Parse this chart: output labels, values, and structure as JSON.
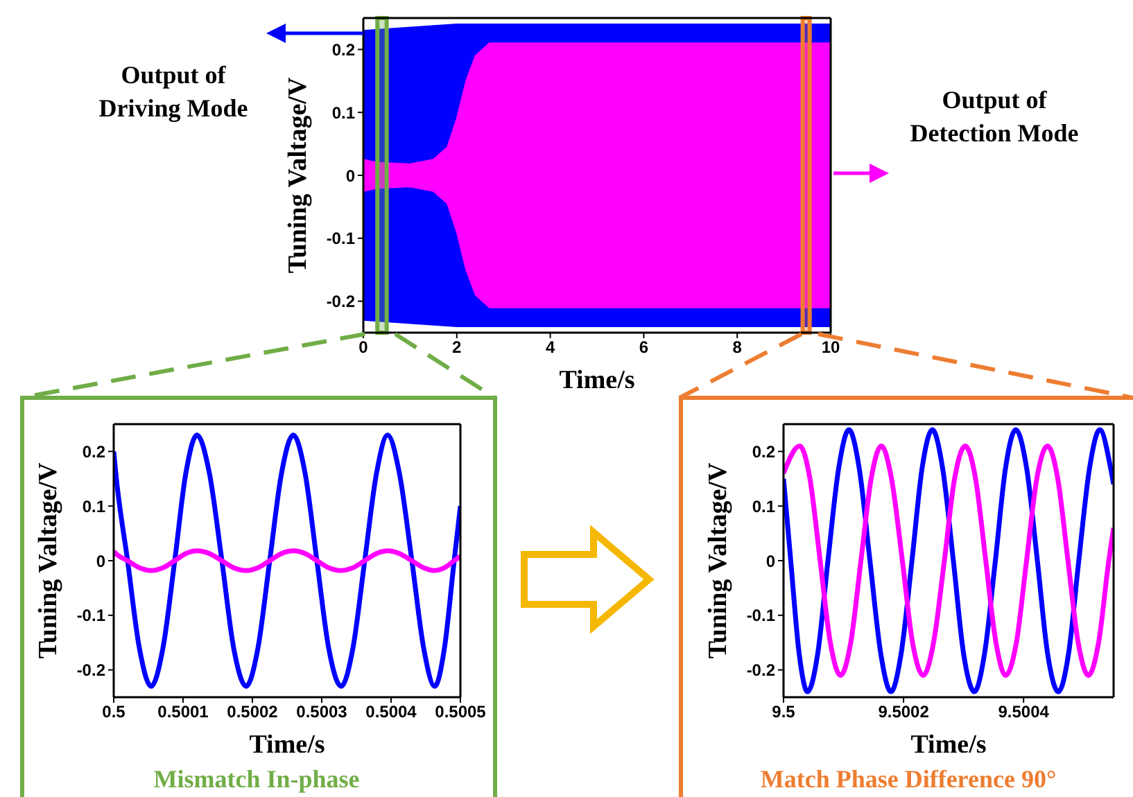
{
  "chart_data": [
    {
      "type": "area",
      "xlabel": "Time/s",
      "ylabel": "Tuning Valtage/V",
      "xlim": [
        0,
        10
      ],
      "xticks": [
        0,
        2,
        4,
        6,
        8,
        10
      ],
      "ylim": [
        -0.25,
        0.25
      ],
      "yticks": [
        -0.2,
        -0.1,
        0,
        0.1,
        0.2
      ],
      "series": [
        {
          "color": "#0000ff",
          "x": [
            0,
            2,
            10
          ],
          "values": [
            0.23,
            0.24,
            0.24
          ]
        },
        {
          "color": "#0000ff",
          "x": [
            0,
            2,
            10
          ],
          "values": [
            -0.23,
            -0.24,
            -0.24
          ]
        },
        {
          "color": "#ff00ff",
          "x": [
            0,
            0.3,
            1,
            1.5,
            1.8,
            2,
            2.2,
            2.4,
            2.7,
            3,
            10
          ],
          "values": [
            0.025,
            0.02,
            0.018,
            0.025,
            0.045,
            0.09,
            0.15,
            0.19,
            0.21,
            0.21,
            0.21
          ]
        },
        {
          "color": "#ff00ff",
          "x": [
            0,
            0.3,
            1,
            1.5,
            1.8,
            2,
            2.2,
            2.4,
            2.7,
            3,
            10
          ],
          "values": [
            -0.025,
            -0.02,
            -0.018,
            -0.025,
            -0.045,
            -0.09,
            -0.15,
            -0.19,
            -0.21,
            -0.21,
            -0.21
          ]
        }
      ],
      "bands": [
        {
          "axis": "x",
          "from": 0.3,
          "to": 0.5,
          "color": "#70ad47"
        },
        {
          "axis": "x",
          "from": 9.4,
          "to": 9.55,
          "color": "#ed7d31"
        }
      ],
      "annotations": [
        "Output of Driving Mode",
        "Output of Detection Mode"
      ]
    },
    {
      "type": "line",
      "xlabel": "Time/s",
      "ylabel": "Tuning Valtage/V",
      "xlim": [
        0.5,
        0.5005
      ],
      "xticks": [
        0.5,
        0.5001,
        0.5002,
        0.5003,
        0.5004,
        0.5005
      ],
      "ylim": [
        -0.25,
        0.25
      ],
      "yticks": [
        -0.2,
        -0.1,
        0,
        0.1,
        0.2
      ],
      "marker": "none",
      "x": [
        0.5,
        0.500003,
        0.50002,
        0.500037,
        0.500054,
        0.500071,
        0.500088,
        0.500104,
        0.50012,
        0.500138,
        0.500156,
        0.500173,
        0.500191,
        0.500208,
        0.500225,
        0.500242,
        0.500259,
        0.500276,
        0.500293,
        0.50031,
        0.500328,
        0.500345,
        0.500362,
        0.500379,
        0.500395,
        0.500412,
        0.50043,
        0.500447,
        0.500463,
        0.500477,
        0.500491,
        0.5005
      ],
      "series": [
        {
          "color": "#0000ff",
          "values": [
            0.2,
            0.16,
            0,
            -0.16,
            -0.23,
            -0.16,
            0,
            0.16,
            0.23,
            0.16,
            0,
            -0.16,
            -0.23,
            -0.16,
            0,
            0.16,
            0.23,
            0.16,
            0,
            -0.16,
            -0.23,
            -0.16,
            0,
            0.16,
            0.23,
            0.16,
            0,
            -0.16,
            -0.23,
            -0.16,
            0,
            0.1
          ]
        },
        {
          "color": "#ff00ff",
          "values": [
            0.017,
            0.013,
            0,
            -0.013,
            -0.018,
            -0.013,
            0,
            0.013,
            0.018,
            0.013,
            0,
            -0.013,
            -0.018,
            -0.013,
            0,
            0.013,
            0.018,
            0.013,
            0,
            -0.013,
            -0.018,
            -0.013,
            0,
            0.013,
            0.018,
            0.013,
            0,
            -0.013,
            -0.018,
            -0.013,
            0,
            0.008
          ]
        }
      ],
      "annotations": [
        "Mismatch In-phase"
      ]
    },
    {
      "type": "line",
      "xlabel": "Time/s",
      "ylabel": "Tuning Valtage/V",
      "xlim": [
        9.5,
        9.50055
      ],
      "xticks": [
        9.5,
        9.5002,
        9.5004
      ],
      "ylim": [
        -0.25,
        0.25
      ],
      "yticks": [
        -0.2,
        -0.1,
        0,
        0.1,
        0.2
      ],
      "marker": "none",
      "series": [
        {
          "color": "#0000ff",
          "x": [
            9.5,
            9.500012,
            9.500026,
            9.50004,
            9.500057,
            9.500074,
            9.500092,
            9.500109,
            9.500126,
            9.500144,
            9.500162,
            9.500179,
            9.500196,
            9.500214,
            9.500231,
            9.500248,
            9.500265,
            9.500283,
            9.5003,
            9.500318,
            9.500335,
            9.500353,
            9.50037,
            9.500387,
            9.500405,
            9.500423,
            9.50044,
            9.500458,
            9.500475,
            9.500492,
            9.50051,
            9.500527,
            9.500545,
            9.50055
          ],
          "values": [
            0.15,
            0,
            -0.17,
            -0.24,
            -0.17,
            0,
            0.17,
            0.24,
            0.17,
            0,
            -0.17,
            -0.24,
            -0.17,
            0,
            0.17,
            0.24,
            0.17,
            0,
            -0.17,
            -0.24,
            -0.17,
            0,
            0.17,
            0.24,
            0.17,
            0,
            -0.17,
            -0.24,
            -0.17,
            0,
            0.17,
            0.24,
            0.17,
            0.14
          ]
        },
        {
          "color": "#ff00ff",
          "x": [
            9.5,
            9.500027,
            9.500044,
            9.500061,
            9.500078,
            9.500095,
            9.500112,
            9.500129,
            9.500146,
            9.500163,
            9.50018,
            9.500198,
            9.500215,
            9.500233,
            9.50025,
            9.500268,
            9.500285,
            9.500303,
            9.50032,
            9.500337,
            9.500354,
            9.50037,
            9.500388,
            9.500405,
            9.500422,
            9.50044,
            9.500457,
            9.500474,
            9.500491,
            9.500508,
            9.500525,
            9.500542,
            9.50055
          ],
          "values": [
            0.16,
            0.21,
            0.15,
            0,
            -0.15,
            -0.21,
            -0.15,
            0,
            0.15,
            0.21,
            0.15,
            0,
            -0.15,
            -0.21,
            -0.15,
            0,
            0.15,
            0.21,
            0.15,
            0,
            -0.15,
            -0.21,
            -0.15,
            0,
            0.15,
            0.21,
            0.15,
            0,
            -0.15,
            -0.21,
            -0.15,
            0,
            0.06
          ]
        }
      ],
      "annotations": [
        "Match Phase Difference 90°"
      ]
    }
  ]
}
